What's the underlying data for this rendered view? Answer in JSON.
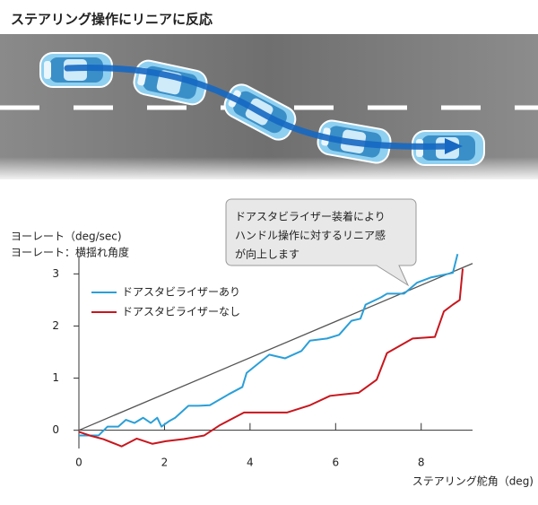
{
  "chart_data": {
    "type": "line",
    "title": "ステアリング操作にリニアに反応",
    "ylabel": "ヨーレート（deg/sec)",
    "ylabel_note": "ヨーレート：横揺れ角度",
    "xlabel": "ステアリング舵角（deg)",
    "annotation": [
      "ドアスタビライザー装着により",
      "ハンドル操作に対するリニア感",
      "が向上します"
    ],
    "xlim": [
      0,
      9.2
    ],
    "ylim": [
      -0.35,
      3.35
    ],
    "xticks": [
      0,
      2,
      4,
      6,
      8
    ],
    "yticks": [
      0,
      1,
      2,
      3
    ],
    "reference_line": {
      "x": [
        0,
        9.2
      ],
      "y": [
        0,
        3.2
      ],
      "color": "#555555"
    },
    "series": [
      {
        "name": "ドアスタビライザーあり",
        "color": "#2a9fd8",
        "x": [
          0,
          0.46,
          0.67,
          0.92,
          1.1,
          1.3,
          1.5,
          1.68,
          1.83,
          1.93,
          2.1,
          2.25,
          2.56,
          2.8,
          3.06,
          3.5,
          3.82,
          3.92,
          4.45,
          4.82,
          5.2,
          5.4,
          5.8,
          6.08,
          6.37,
          6.58,
          6.7,
          7.06,
          7.2,
          7.6,
          7.9,
          8.22,
          8.74,
          8.85
        ],
        "values": [
          -0.1,
          -0.1,
          0.07,
          0.07,
          0.2,
          0.14,
          0.24,
          0.14,
          0.24,
          0.07,
          0.17,
          0.24,
          0.47,
          0.47,
          0.48,
          0.69,
          0.83,
          1.1,
          1.45,
          1.38,
          1.52,
          1.72,
          1.76,
          1.83,
          2.1,
          2.14,
          2.41,
          2.55,
          2.62,
          2.62,
          2.83,
          2.93,
          3.02,
          3.38
        ]
      },
      {
        "name": "ドアスタビライザーなし",
        "color": "#c8161d",
        "x": [
          0,
          0.25,
          0.57,
          1.0,
          1.35,
          1.72,
          2.03,
          2.45,
          2.93,
          3.3,
          3.86,
          4.86,
          5.4,
          5.87,
          6.54,
          6.96,
          7.2,
          7.8,
          8.32,
          8.53,
          8.74,
          8.9,
          8.97
        ],
        "values": [
          -0.03,
          -0.1,
          -0.17,
          -0.31,
          -0.16,
          -0.26,
          -0.21,
          -0.17,
          -0.1,
          0.1,
          0.34,
          0.34,
          0.48,
          0.66,
          0.72,
          0.97,
          1.48,
          1.76,
          1.79,
          2.28,
          2.41,
          2.5,
          3.1
        ]
      }
    ]
  }
}
